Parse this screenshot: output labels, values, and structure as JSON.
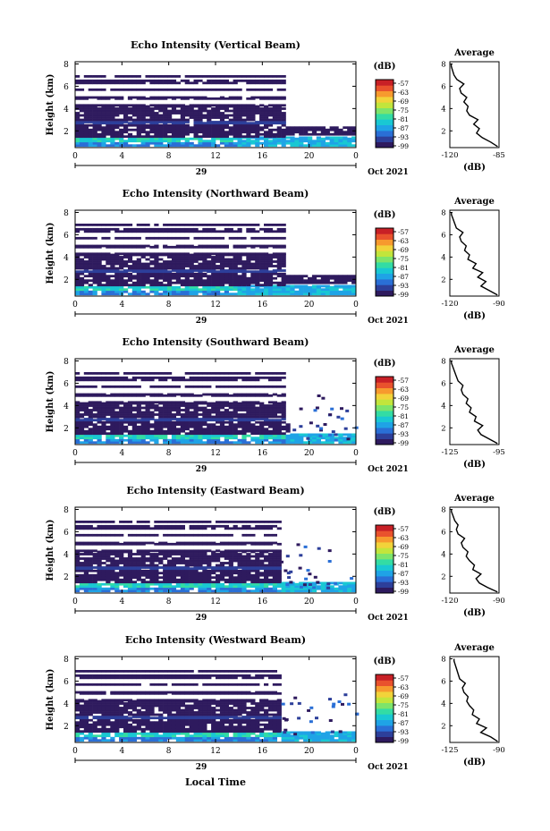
{
  "figure": {
    "colorbar_ticks": [
      "-57",
      "-63",
      "-69",
      "-75",
      "-81",
      "-87",
      "-93",
      "-99"
    ],
    "colorbar_unit": "(dB)",
    "colors": [
      "#2e1a5e",
      "#2d3f9a",
      "#2a6fd6",
      "#1fa3e6",
      "#19c8d3",
      "#33dca4",
      "#7de46b",
      "#c2e53c",
      "#f2d33a",
      "#f79a2e",
      "#e9522d",
      "#c82026"
    ],
    "date_label": "Oct 2021",
    "day_label": "29",
    "xlabel": "Local Time",
    "x_ticks": [
      "0",
      "4",
      "8",
      "12",
      "16",
      "20",
      "0"
    ],
    "y_ticks": [
      "2",
      "4",
      "6",
      "8"
    ],
    "ylabel": "Height (km)",
    "average_title": "Average",
    "average_xlabel": "(dB)",
    "average_y_ticks": [
      "2",
      "4",
      "6",
      "8"
    ]
  },
  "chart_data": [
    {
      "type": "heatmap",
      "title": "Echo Intensity (Vertical Beam)",
      "xlim": [
        0,
        24
      ],
      "ylim": [
        0.5,
        8.2
      ],
      "clim": [
        -99,
        -57
      ],
      "cutoff_hour": 24,
      "lower_layer_extent": 14,
      "average": {
        "type": "line",
        "x_ticks": [
          "-120",
          "-85"
        ],
        "xlim": [
          -120,
          -85
        ],
        "height": [
          0.6,
          1.0,
          1.4,
          1.8,
          2.2,
          2.6,
          3.0,
          3.4,
          3.8,
          4.2,
          4.6,
          5.0,
          5.4,
          5.8,
          6.2,
          6.6,
          7.0,
          7.4,
          7.8,
          8.0
        ],
        "value": [
          -86,
          -91,
          -97,
          -101,
          -99,
          -103,
          -100,
          -106,
          -108,
          -107,
          -110,
          -108,
          -112,
          -113,
          -110,
          -115,
          -117,
          -118,
          -119,
          -119
        ]
      }
    },
    {
      "type": "heatmap",
      "title": "Echo Intensity (Northward Beam)",
      "xlim": [
        0,
        24
      ],
      "ylim": [
        0.5,
        8.2
      ],
      "clim": [
        -99,
        -57
      ],
      "cutoff_hour": 24,
      "lower_layer_extent": 14,
      "average": {
        "type": "line",
        "x_ticks": [
          "-120",
          "-90"
        ],
        "xlim": [
          -120,
          -90
        ],
        "height": [
          0.6,
          1.0,
          1.4,
          1.8,
          2.2,
          2.6,
          3.0,
          3.4,
          3.8,
          4.2,
          4.6,
          5.0,
          5.4,
          5.8,
          6.2,
          6.6,
          7.0,
          7.4,
          7.8,
          8.0
        ],
        "value": [
          -91,
          -96,
          -101,
          -98,
          -103,
          -100,
          -106,
          -104,
          -109,
          -108,
          -111,
          -110,
          -113,
          -114,
          -112,
          -116,
          -117,
          -118,
          -119,
          -119
        ]
      }
    },
    {
      "type": "heatmap",
      "title": "Echo Intensity (Southward Beam)",
      "xlim": [
        0,
        24
      ],
      "ylim": [
        0.5,
        8.2
      ],
      "clim": [
        -99,
        -57
      ],
      "cutoff_hour": 18.5,
      "lower_layer_extent": 18,
      "average": {
        "type": "line",
        "x_ticks": [
          "-125",
          "-95"
        ],
        "xlim": [
          -125,
          -95
        ],
        "height": [
          0.6,
          1.0,
          1.4,
          1.8,
          2.2,
          2.6,
          3.0,
          3.4,
          3.8,
          4.2,
          4.6,
          5.0,
          5.4,
          5.8,
          6.2,
          6.6,
          7.0,
          7.4,
          7.8,
          8.0
        ],
        "value": [
          -96,
          -101,
          -106,
          -108,
          -105,
          -110,
          -109,
          -113,
          -112,
          -115,
          -114,
          -117,
          -118,
          -117,
          -120,
          -121,
          -122,
          -123,
          -124,
          -124
        ]
      }
    },
    {
      "type": "heatmap",
      "title": "Echo Intensity (Eastward Beam)",
      "xlim": [
        0,
        24
      ],
      "ylim": [
        0.5,
        8.2
      ],
      "clim": [
        -99,
        -57
      ],
      "cutoff_hour": 17.5,
      "lower_layer_extent": 17.5,
      "average": {
        "type": "line",
        "x_ticks": [
          "-120",
          "-90"
        ],
        "xlim": [
          -120,
          -90
        ],
        "height": [
          0.6,
          1.0,
          1.4,
          1.8,
          2.2,
          2.6,
          3.0,
          3.4,
          3.8,
          4.2,
          4.6,
          5.0,
          5.4,
          5.8,
          6.2,
          6.6,
          7.0,
          7.4,
          7.8,
          8.0
        ],
        "value": [
          -91,
          -97,
          -102,
          -104,
          -101,
          -106,
          -105,
          -108,
          -110,
          -109,
          -112,
          -113,
          -111,
          -115,
          -116,
          -115,
          -117,
          -118,
          -119,
          -119
        ]
      }
    },
    {
      "type": "heatmap",
      "title": "Echo Intensity (Westward Beam)",
      "xlim": [
        0,
        24
      ],
      "ylim": [
        0.5,
        8.2
      ],
      "clim": [
        -99,
        -57
      ],
      "cutoff_hour": 17.5,
      "lower_layer_extent": 17.5,
      "average": {
        "type": "line",
        "x_ticks": [
          "-125",
          "-90"
        ],
        "xlim": [
          -125,
          -90
        ],
        "height": [
          0.6,
          1.0,
          1.4,
          1.8,
          2.2,
          2.6,
          3.0,
          3.4,
          3.8,
          4.2,
          4.6,
          5.0,
          5.4,
          5.8,
          6.2,
          6.6,
          7.0,
          7.4,
          7.8,
          8.0
        ],
        "value": [
          -91,
          -96,
          -103,
          -99,
          -106,
          -104,
          -109,
          -108,
          -111,
          -113,
          -112,
          -115,
          -116,
          -114,
          -118,
          -119,
          -120,
          -121,
          -122,
          -122
        ]
      }
    }
  ]
}
